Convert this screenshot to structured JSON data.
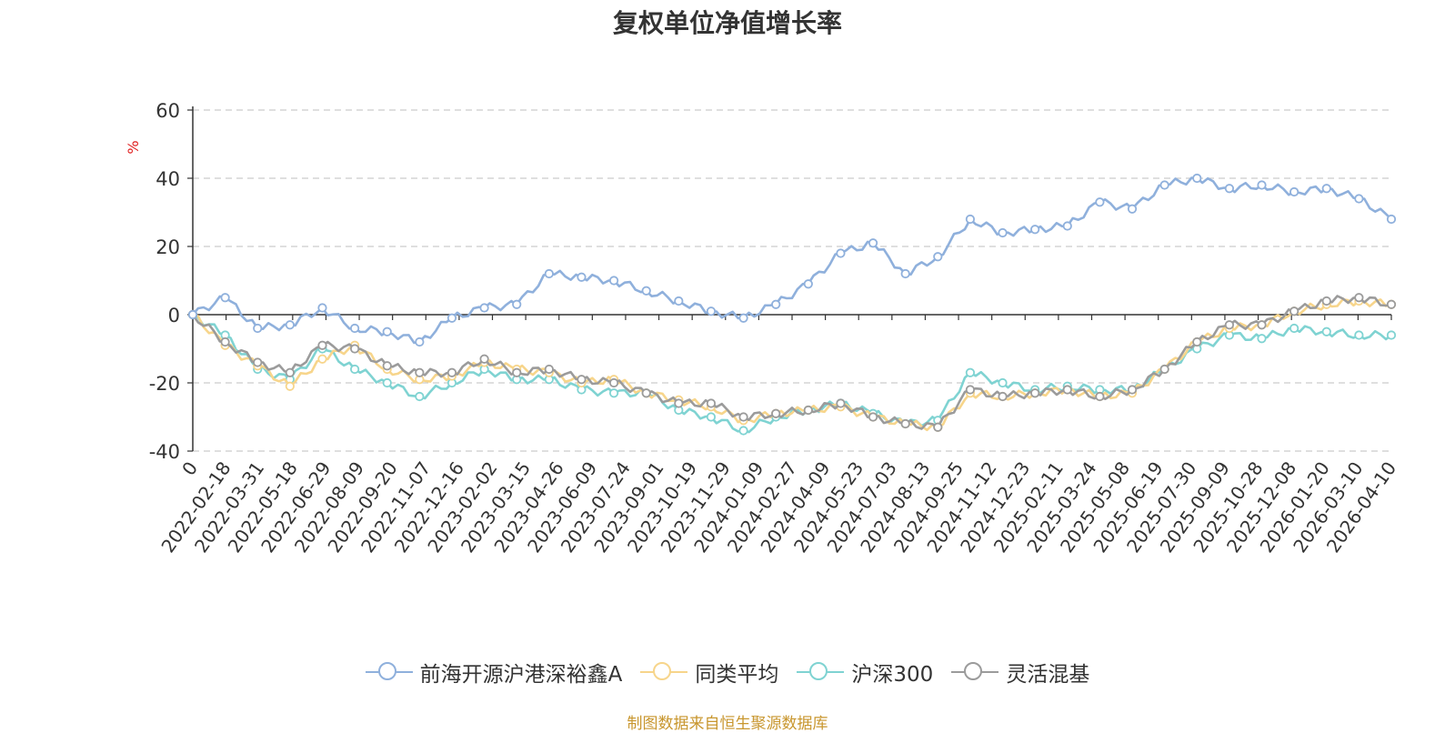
{
  "chart_data": {
    "type": "line",
    "title": "复权单位净值增长率",
    "ylabel": "%",
    "ylim": [
      -40,
      60
    ],
    "yticks": [
      60,
      40,
      20,
      0,
      -20,
      -40
    ],
    "grid": true,
    "legend_position": "bottom-center",
    "xticks": [
      "0",
      "2022-02-18",
      "2022-03-31",
      "2022-05-18",
      "2022-06-29",
      "2022-08-09",
      "2022-09-20",
      "2022-11-07",
      "2022-12-16",
      "2023-02-02",
      "2023-03-15",
      "2023-04-26",
      "2023-06-09",
      "2023-07-24",
      "2023-09-01",
      "2023-10-19",
      "2023-11-29",
      "2024-01-09",
      "2024-02-27",
      "2024-04-09",
      "2024-05-23",
      "2024-07-03",
      "2024-08-13",
      "2024-09-25",
      "2024-11-12",
      "2024-12-23",
      "2025-02-11",
      "2025-03-24",
      "2025-05-08",
      "2025-06-19",
      "2025-07-30",
      "2025-09-09",
      "2025-10-28",
      "2025-12-08",
      "2026-01-20",
      "2026-03-10",
      "2026-04-10"
    ],
    "series": [
      {
        "name": "前海开源沪港深裕鑫A",
        "color": "#8fb0dc",
        "values": [
          0,
          5,
          -4,
          -3,
          2,
          -4,
          -5,
          -8,
          -1,
          2,
          3,
          12,
          11,
          10,
          7,
          4,
          1,
          -1,
          3,
          9,
          18,
          21,
          12,
          17,
          28,
          24,
          25,
          26,
          33,
          31,
          38,
          40,
          37,
          38,
          36,
          37,
          34,
          28
        ]
      },
      {
        "name": "同类平均",
        "color": "#f7d58b",
        "values": [
          0,
          -9,
          -15,
          -21,
          -13,
          -9,
          -16,
          -19,
          -18,
          -14,
          -16,
          -17,
          -20,
          -19,
          -23,
          -25,
          -27,
          -31,
          -29,
          -28,
          -27,
          -30,
          -32,
          -33,
          -23,
          -24,
          -23,
          -22,
          -24,
          -23,
          -16,
          -8,
          -4,
          -3,
          1,
          3,
          4,
          3
        ]
      },
      {
        "name": "沪深300",
        "color": "#7fd3d2",
        "values": [
          0,
          -6,
          -16,
          -19,
          -10,
          -16,
          -20,
          -24,
          -20,
          -16,
          -19,
          -19,
          -22,
          -23,
          -23,
          -28,
          -30,
          -34,
          -30,
          -28,
          -26,
          -29,
          -32,
          -31,
          -17,
          -20,
          -22,
          -21,
          -22,
          -22,
          -16,
          -10,
          -6,
          -7,
          -4,
          -5,
          -6,
          -6
        ]
      },
      {
        "name": "灵活混基",
        "color": "#9b9b9b",
        "values": [
          0,
          -8,
          -14,
          -17,
          -9,
          -10,
          -15,
          -17,
          -17,
          -13,
          -17,
          -16,
          -19,
          -20,
          -23,
          -26,
          -26,
          -30,
          -29,
          -28,
          -26,
          -30,
          -32,
          -33,
          -22,
          -24,
          -23,
          -22,
          -24,
          -22,
          -16,
          -8,
          -3,
          -3,
          1,
          4,
          5,
          3
        ]
      }
    ]
  },
  "legend": [
    {
      "label": "前海开源沪港深裕鑫A",
      "color": "#8fb0dc"
    },
    {
      "label": "同类平均",
      "color": "#f7d58b"
    },
    {
      "label": "沪深300",
      "color": "#7fd3d2"
    },
    {
      "label": "灵活混基",
      "color": "#9b9b9b"
    }
  ],
  "source_note": "制图数据来自恒生聚源数据库"
}
